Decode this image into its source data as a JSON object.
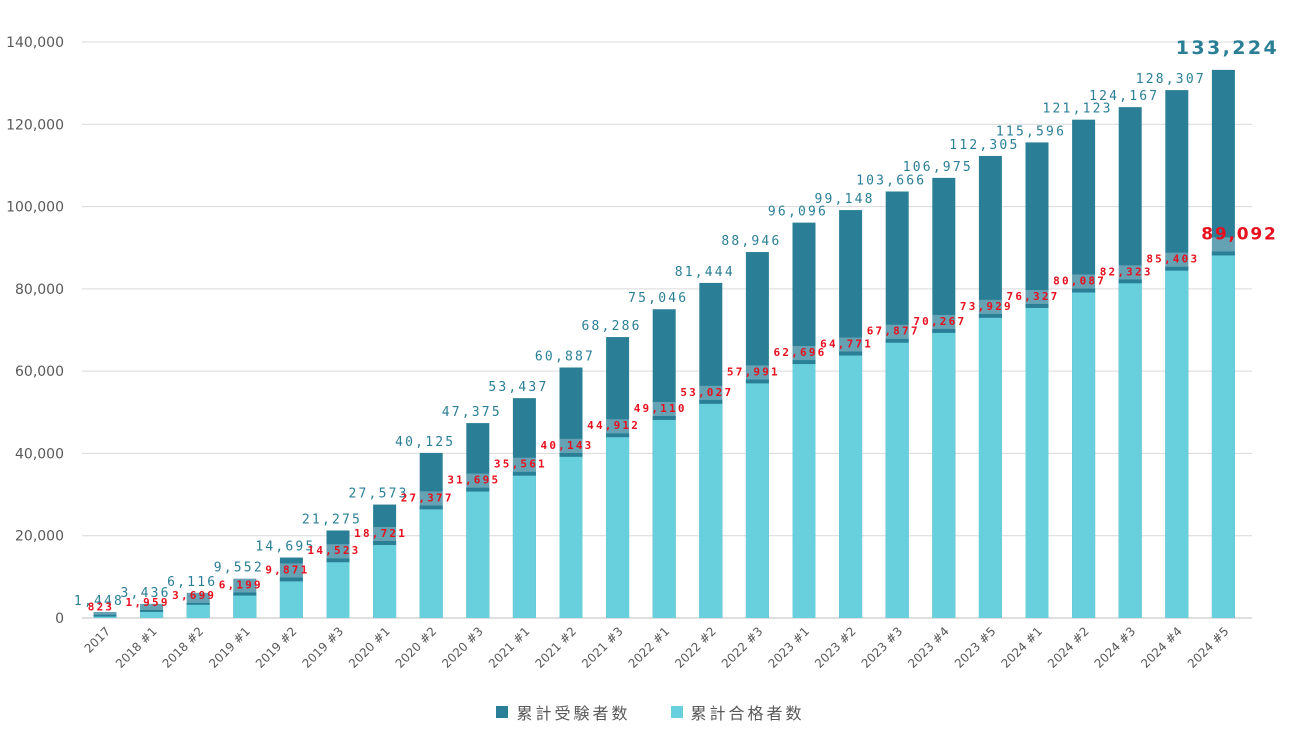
{
  "chart_data": {
    "type": "bar",
    "stacked_overlay": true,
    "categories": [
      "2017",
      "2018 #1",
      "2018 #2",
      "2019 #1",
      "2019 #2",
      "2019 #3",
      "2020 #1",
      "2020 #2",
      "2020 #3",
      "2021 #1",
      "2021 #2",
      "2021 #3",
      "2022 #1",
      "2022 #2",
      "2022 #3",
      "2023 #1",
      "2023 #2",
      "2023 #3",
      "2023 #4",
      "2023 #5",
      "2024 #1",
      "2024 #2",
      "2024 #3",
      "2024 #4",
      "2024 #5"
    ],
    "series": [
      {
        "name": "累計受験者数",
        "color": "#2a7f96",
        "values": [
          1448,
          3436,
          6116,
          9552,
          14695,
          21275,
          27573,
          40125,
          47375,
          53437,
          60887,
          68286,
          75046,
          81444,
          88946,
          96096,
          99148,
          103666,
          106975,
          112305,
          115596,
          121123,
          124167,
          128307,
          133224
        ],
        "labels": [
          "1,448",
          "3,436",
          "6,116",
          "9,552",
          "14,695",
          "21,275",
          "27,573",
          "40,125",
          "47,375",
          "53,437",
          "60,887",
          "68,286",
          "75,046",
          "81,444",
          "88,946",
          "96,096",
          "99,148",
          "103,666",
          "106,975",
          "112,305",
          "115,596",
          "121,123",
          "124,167",
          "128,307",
          "133,224"
        ]
      },
      {
        "name": "累計合格者数",
        "color": "#68d0dc",
        "values": [
          823,
          1959,
          3699,
          6199,
          9871,
          14523,
          18721,
          27377,
          31695,
          35561,
          40143,
          44912,
          49110,
          53027,
          57991,
          62696,
          64771,
          67877,
          70267,
          73929,
          76327,
          80087,
          82323,
          85403,
          89092
        ],
        "labels": [
          "823",
          "1,959",
          "3,699",
          "6,199",
          "9,871",
          "14,523",
          "18,721",
          "27,377",
          "31,695",
          "35,561",
          "40,143",
          "44,912",
          "49,110",
          "53,027",
          "57,991",
          "62,696",
          "64,771",
          "67,877",
          "70,267",
          "73,929",
          "76,327",
          "80,087",
          "82,323",
          "85,403",
          "89,092"
        ]
      }
    ],
    "yticks": [
      "0",
      "20,000",
      "40,000",
      "60,000",
      "80,000",
      "100,000",
      "120,000",
      "140,000"
    ],
    "ylim": [
      0,
      140000
    ],
    "ytick_values": [
      0,
      20000,
      40000,
      60000,
      80000,
      100000,
      120000,
      140000
    ],
    "grid": true,
    "legend_position": "bottom-center",
    "title": "",
    "xlabel": "",
    "ylabel": ""
  },
  "legend": {
    "total_label": "累計受験者数",
    "pass_label": "累計合格者数"
  }
}
